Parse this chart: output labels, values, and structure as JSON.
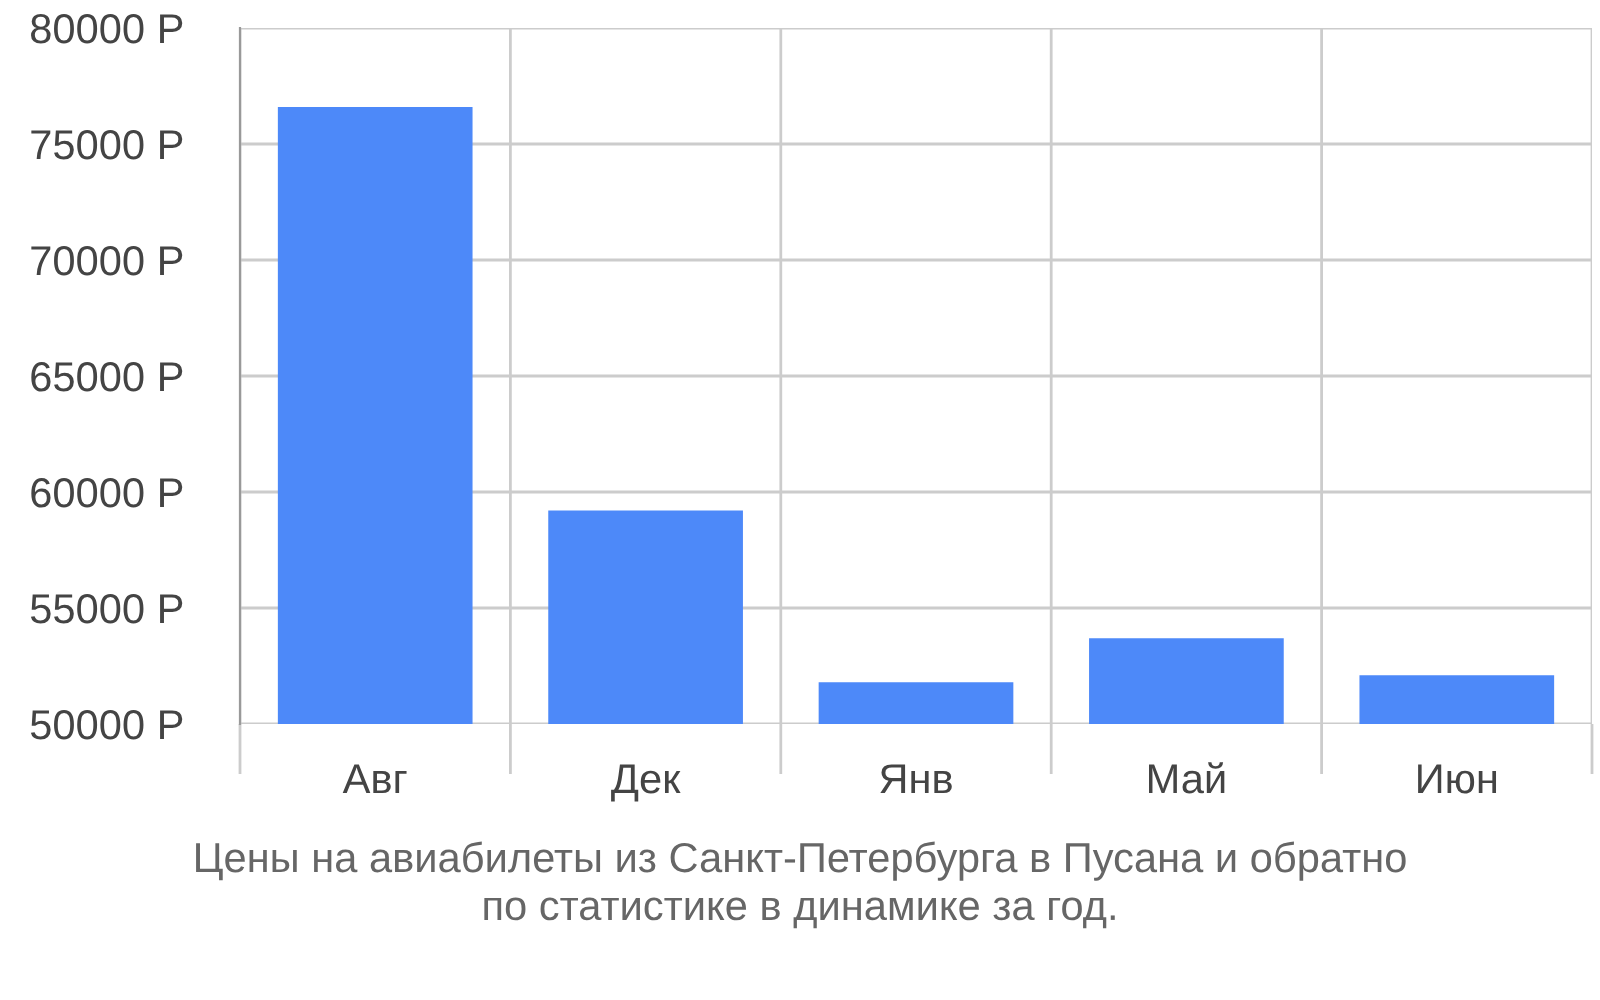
{
  "chart_data": {
    "type": "bar",
    "categories": [
      "Авг",
      "Дек",
      "Янв",
      "Май",
      "Июн"
    ],
    "base": [
      50000,
      50000,
      50000,
      50000,
      50000
    ],
    "values": [
      26600,
      9200,
      1800,
      3700,
      2100
    ],
    "color": "#4d89f9",
    "ylim": [
      50000,
      80000
    ],
    "yticks": [
      {
        "value": 50000,
        "label": "50000 Р"
      },
      {
        "value": 55000,
        "label": "55000 Р"
      },
      {
        "value": 60000,
        "label": "60000 Р"
      },
      {
        "value": 65000,
        "label": "65000 Р"
      },
      {
        "value": 70000,
        "label": "70000 Р"
      },
      {
        "value": 75000,
        "label": "75000 Р"
      },
      {
        "value": 80000,
        "label": "80000 Р"
      }
    ],
    "grid": true,
    "annotations": [
      "Цены на авиабилеты из Санкт-Петербурга в Пусана и обратно\nпо статистике в динамике за год."
    ]
  }
}
